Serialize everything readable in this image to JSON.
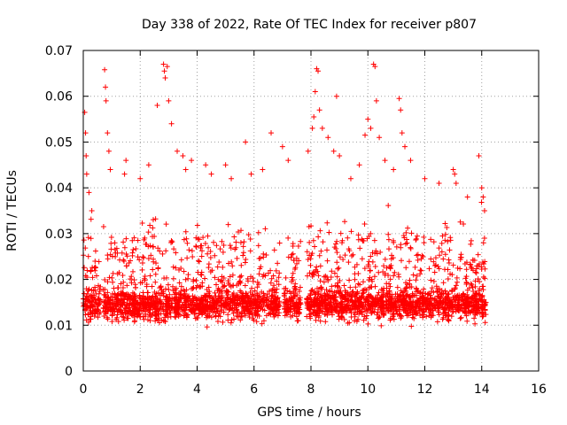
{
  "chart_data": {
    "type": "scatter",
    "title": "Day 338 of 2022, Rate Of TEC Index for receiver p807",
    "xlabel": "GPS time / hours",
    "ylabel": "ROTI / TECUs",
    "xlim": [
      0,
      16
    ],
    "ylim": [
      0,
      0.07
    ],
    "x_ticks": [
      "0",
      "2",
      "4",
      "6",
      "8",
      "10",
      "12",
      "14",
      "16"
    ],
    "y_ticks": [
      "0",
      "0.01",
      "0.02",
      "0.03",
      "0.04",
      "0.05",
      "0.06",
      "0.07"
    ],
    "grid": true,
    "marker": "+",
    "series": [
      {
        "name": "p807",
        "color": "#ff0000",
        "data_range_x": [
          0,
          14.15
        ],
        "typical_y_range": [
          0.004,
          0.035
        ],
        "points": [
          [
            0.05,
            0.0565
          ],
          [
            0.08,
            0.052
          ],
          [
            0.1,
            0.047
          ],
          [
            0.12,
            0.043
          ],
          [
            0.2,
            0.039
          ],
          [
            0.3,
            0.035
          ],
          [
            0.75,
            0.0658
          ],
          [
            0.78,
            0.062
          ],
          [
            0.8,
            0.059
          ],
          [
            0.85,
            0.052
          ],
          [
            0.9,
            0.048
          ],
          [
            0.95,
            0.044
          ],
          [
            1.5,
            0.046
          ],
          [
            1.45,
            0.043
          ],
          [
            2.0,
            0.042
          ],
          [
            2.3,
            0.045
          ],
          [
            2.6,
            0.058
          ],
          [
            2.82,
            0.067
          ],
          [
            2.85,
            0.0655
          ],
          [
            2.88,
            0.064
          ],
          [
            2.95,
            0.0665
          ],
          [
            3.0,
            0.059
          ],
          [
            3.1,
            0.054
          ],
          [
            3.3,
            0.048
          ],
          [
            3.5,
            0.047
          ],
          [
            3.6,
            0.044
          ],
          [
            3.8,
            0.046
          ],
          [
            4.3,
            0.045
          ],
          [
            4.5,
            0.043
          ],
          [
            5.0,
            0.045
          ],
          [
            5.2,
            0.042
          ],
          [
            5.7,
            0.05
          ],
          [
            5.9,
            0.043
          ],
          [
            6.3,
            0.044
          ],
          [
            6.6,
            0.052
          ],
          [
            7.0,
            0.049
          ],
          [
            7.2,
            0.046
          ],
          [
            7.9,
            0.048
          ],
          [
            8.05,
            0.053
          ],
          [
            8.1,
            0.0555
          ],
          [
            8.15,
            0.061
          ],
          [
            8.2,
            0.066
          ],
          [
            8.25,
            0.0655
          ],
          [
            8.3,
            0.057
          ],
          [
            8.4,
            0.053
          ],
          [
            8.6,
            0.051
          ],
          [
            8.8,
            0.048
          ],
          [
            8.9,
            0.06
          ],
          [
            9.0,
            0.047
          ],
          [
            9.4,
            0.042
          ],
          [
            9.7,
            0.045
          ],
          [
            9.9,
            0.0515
          ],
          [
            10.0,
            0.055
          ],
          [
            10.1,
            0.053
          ],
          [
            10.2,
            0.067
          ],
          [
            10.25,
            0.0665
          ],
          [
            10.3,
            0.059
          ],
          [
            10.4,
            0.051
          ],
          [
            10.6,
            0.046
          ],
          [
            10.9,
            0.044
          ],
          [
            11.1,
            0.0595
          ],
          [
            11.15,
            0.057
          ],
          [
            11.2,
            0.052
          ],
          [
            11.3,
            0.049
          ],
          [
            11.5,
            0.046
          ],
          [
            12.0,
            0.042
          ],
          [
            12.5,
            0.041
          ],
          [
            13.0,
            0.044
          ],
          [
            13.05,
            0.043
          ],
          [
            13.1,
            0.041
          ],
          [
            13.5,
            0.038
          ],
          [
            13.9,
            0.047
          ],
          [
            14.0,
            0.04
          ],
          [
            14.05,
            0.038
          ],
          [
            14.1,
            0.035
          ]
        ]
      }
    ]
  }
}
